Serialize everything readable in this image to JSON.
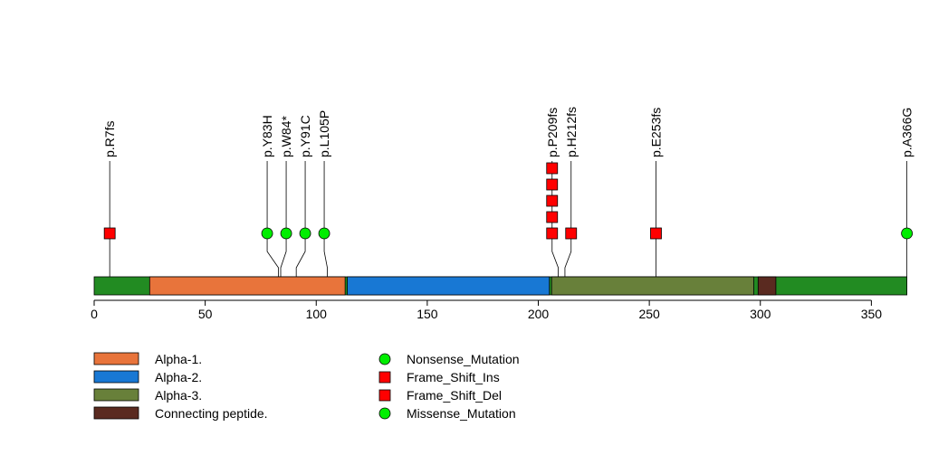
{
  "chart_data": {
    "type": "lollipop",
    "protein_length": 366,
    "x_axis": {
      "ticks": [
        0,
        50,
        100,
        150,
        200,
        250,
        300,
        350
      ],
      "tick_labels": [
        "0",
        "50",
        "100",
        "150",
        "200",
        "250",
        "300",
        "350"
      ],
      "range": [
        0,
        366
      ]
    },
    "backbone_color": "#228B22",
    "domains": [
      {
        "name": "Alpha-1.",
        "start": 25,
        "end": 113,
        "color": "#E8743B"
      },
      {
        "name": "Alpha-2.",
        "start": 114,
        "end": 205,
        "color": "#1878D4"
      },
      {
        "name": "Alpha-3.",
        "start": 206,
        "end": 297,
        "color": "#68803A"
      },
      {
        "name": "Connecting peptide.",
        "start": 299,
        "end": 307,
        "color": "#5A2A20"
      }
    ],
    "mutation_types": [
      {
        "name": "Nonsense_Mutation",
        "shape": "circle",
        "color": "#00EE00"
      },
      {
        "name": "Frame_Shift_Ins",
        "shape": "square",
        "color": "#FF0000"
      },
      {
        "name": "Frame_Shift_Del",
        "shape": "square",
        "color": "#FF0000"
      },
      {
        "name": "Missense_Mutation",
        "shape": "circle",
        "color": "#00EE00"
      }
    ],
    "mutations": [
      {
        "label": "p.R7fs",
        "position": 7,
        "count": 1,
        "shape": "square",
        "color": "#FF0000"
      },
      {
        "label": "p.Y83H",
        "position": 83,
        "count": 1,
        "shape": "circle",
        "color": "#00EE00"
      },
      {
        "label": "p.W84*",
        "position": 84,
        "count": 1,
        "shape": "circle",
        "color": "#00EE00"
      },
      {
        "label": "p.Y91C",
        "position": 91,
        "count": 1,
        "shape": "circle",
        "color": "#00EE00"
      },
      {
        "label": "p.L105P",
        "position": 105,
        "count": 1,
        "shape": "circle",
        "color": "#00EE00"
      },
      {
        "label": "p.P209fs",
        "position": 209,
        "count": 5,
        "shape": "square",
        "color": "#FF0000"
      },
      {
        "label": "p.H212fs",
        "position": 212,
        "count": 1,
        "shape": "square",
        "color": "#FF0000"
      },
      {
        "label": "p.E253fs",
        "position": 253,
        "count": 1,
        "shape": "square",
        "color": "#FF0000"
      },
      {
        "label": "p.A366G",
        "position": 366,
        "count": 1,
        "shape": "circle",
        "color": "#00EE00"
      }
    ]
  }
}
